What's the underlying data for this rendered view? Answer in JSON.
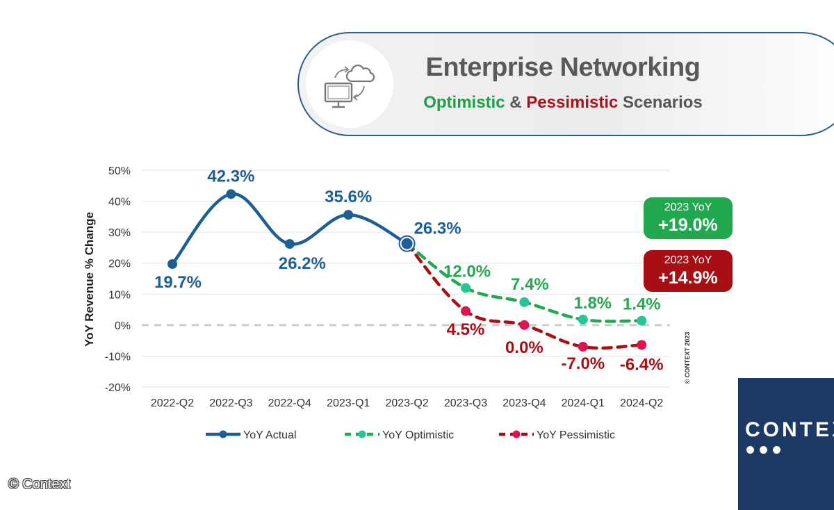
{
  "header": {
    "title": "Enterprise Networking",
    "subtitle_optimistic": "Optimistic",
    "subtitle_amp": "&",
    "subtitle_pessimistic": "Pessimistic",
    "subtitle_rest": "Scenarios",
    "icon": "cloud-computer-sync-icon"
  },
  "badges": {
    "optimistic": {
      "label": "2023 YoY",
      "value": "+19.0%"
    },
    "pessimistic": {
      "label": "2023 YoY",
      "value": "+14.9%"
    }
  },
  "colors": {
    "actual": "#1e5e96",
    "optimistic": "#22a94f",
    "optimistic_marker": "#27c499",
    "pessimistic": "#a80f14",
    "pessimistic_marker": "#e0144c",
    "grid": "#e3e3e3",
    "zero_line": "#cccccc"
  },
  "chart_data": {
    "type": "line",
    "categories": [
      "2022-Q2",
      "2022-Q3",
      "2022-Q4",
      "2023-Q1",
      "2023-Q2",
      "2023-Q3",
      "2023-Q4",
      "2024-Q1",
      "2024-Q2"
    ],
    "ylabel": "YoY Revenue % Change",
    "ylim": [
      -20,
      50
    ],
    "yticks": [
      50,
      40,
      30,
      20,
      10,
      0,
      -10,
      -20
    ],
    "ytick_labels": [
      "50%",
      "40%",
      "30%",
      "20%",
      "10%",
      "0%",
      "-10%",
      "-20%"
    ],
    "grid": true,
    "legend_position": "bottom",
    "watermark": "© CONTEXT 2023",
    "series": [
      {
        "name": "YoY Actual",
        "style": "solid",
        "values": [
          19.7,
          42.3,
          26.2,
          35.6,
          26.3,
          null,
          null,
          null,
          null
        ],
        "labels": [
          "19.7%",
          "42.3%",
          "26.2%",
          "35.6%",
          "26.3%",
          null,
          null,
          null,
          null
        ]
      },
      {
        "name": "YoY Optimistic",
        "style": "dashed",
        "values": [
          null,
          null,
          null,
          null,
          26.3,
          12.0,
          7.4,
          1.8,
          1.4
        ],
        "labels": [
          null,
          null,
          null,
          null,
          null,
          "12.0%",
          "7.4%",
          "1.8%",
          "1.4%"
        ]
      },
      {
        "name": "YoY Pessimistic",
        "style": "dashed",
        "values": [
          null,
          null,
          null,
          null,
          26.3,
          4.5,
          0.0,
          -7.0,
          -6.4
        ],
        "labels": [
          null,
          null,
          null,
          null,
          null,
          "4.5%",
          "0.0%",
          "-7.0%",
          "-6.4%"
        ]
      }
    ]
  },
  "logo": {
    "text": "CONTEX"
  },
  "copyright": "© Context"
}
